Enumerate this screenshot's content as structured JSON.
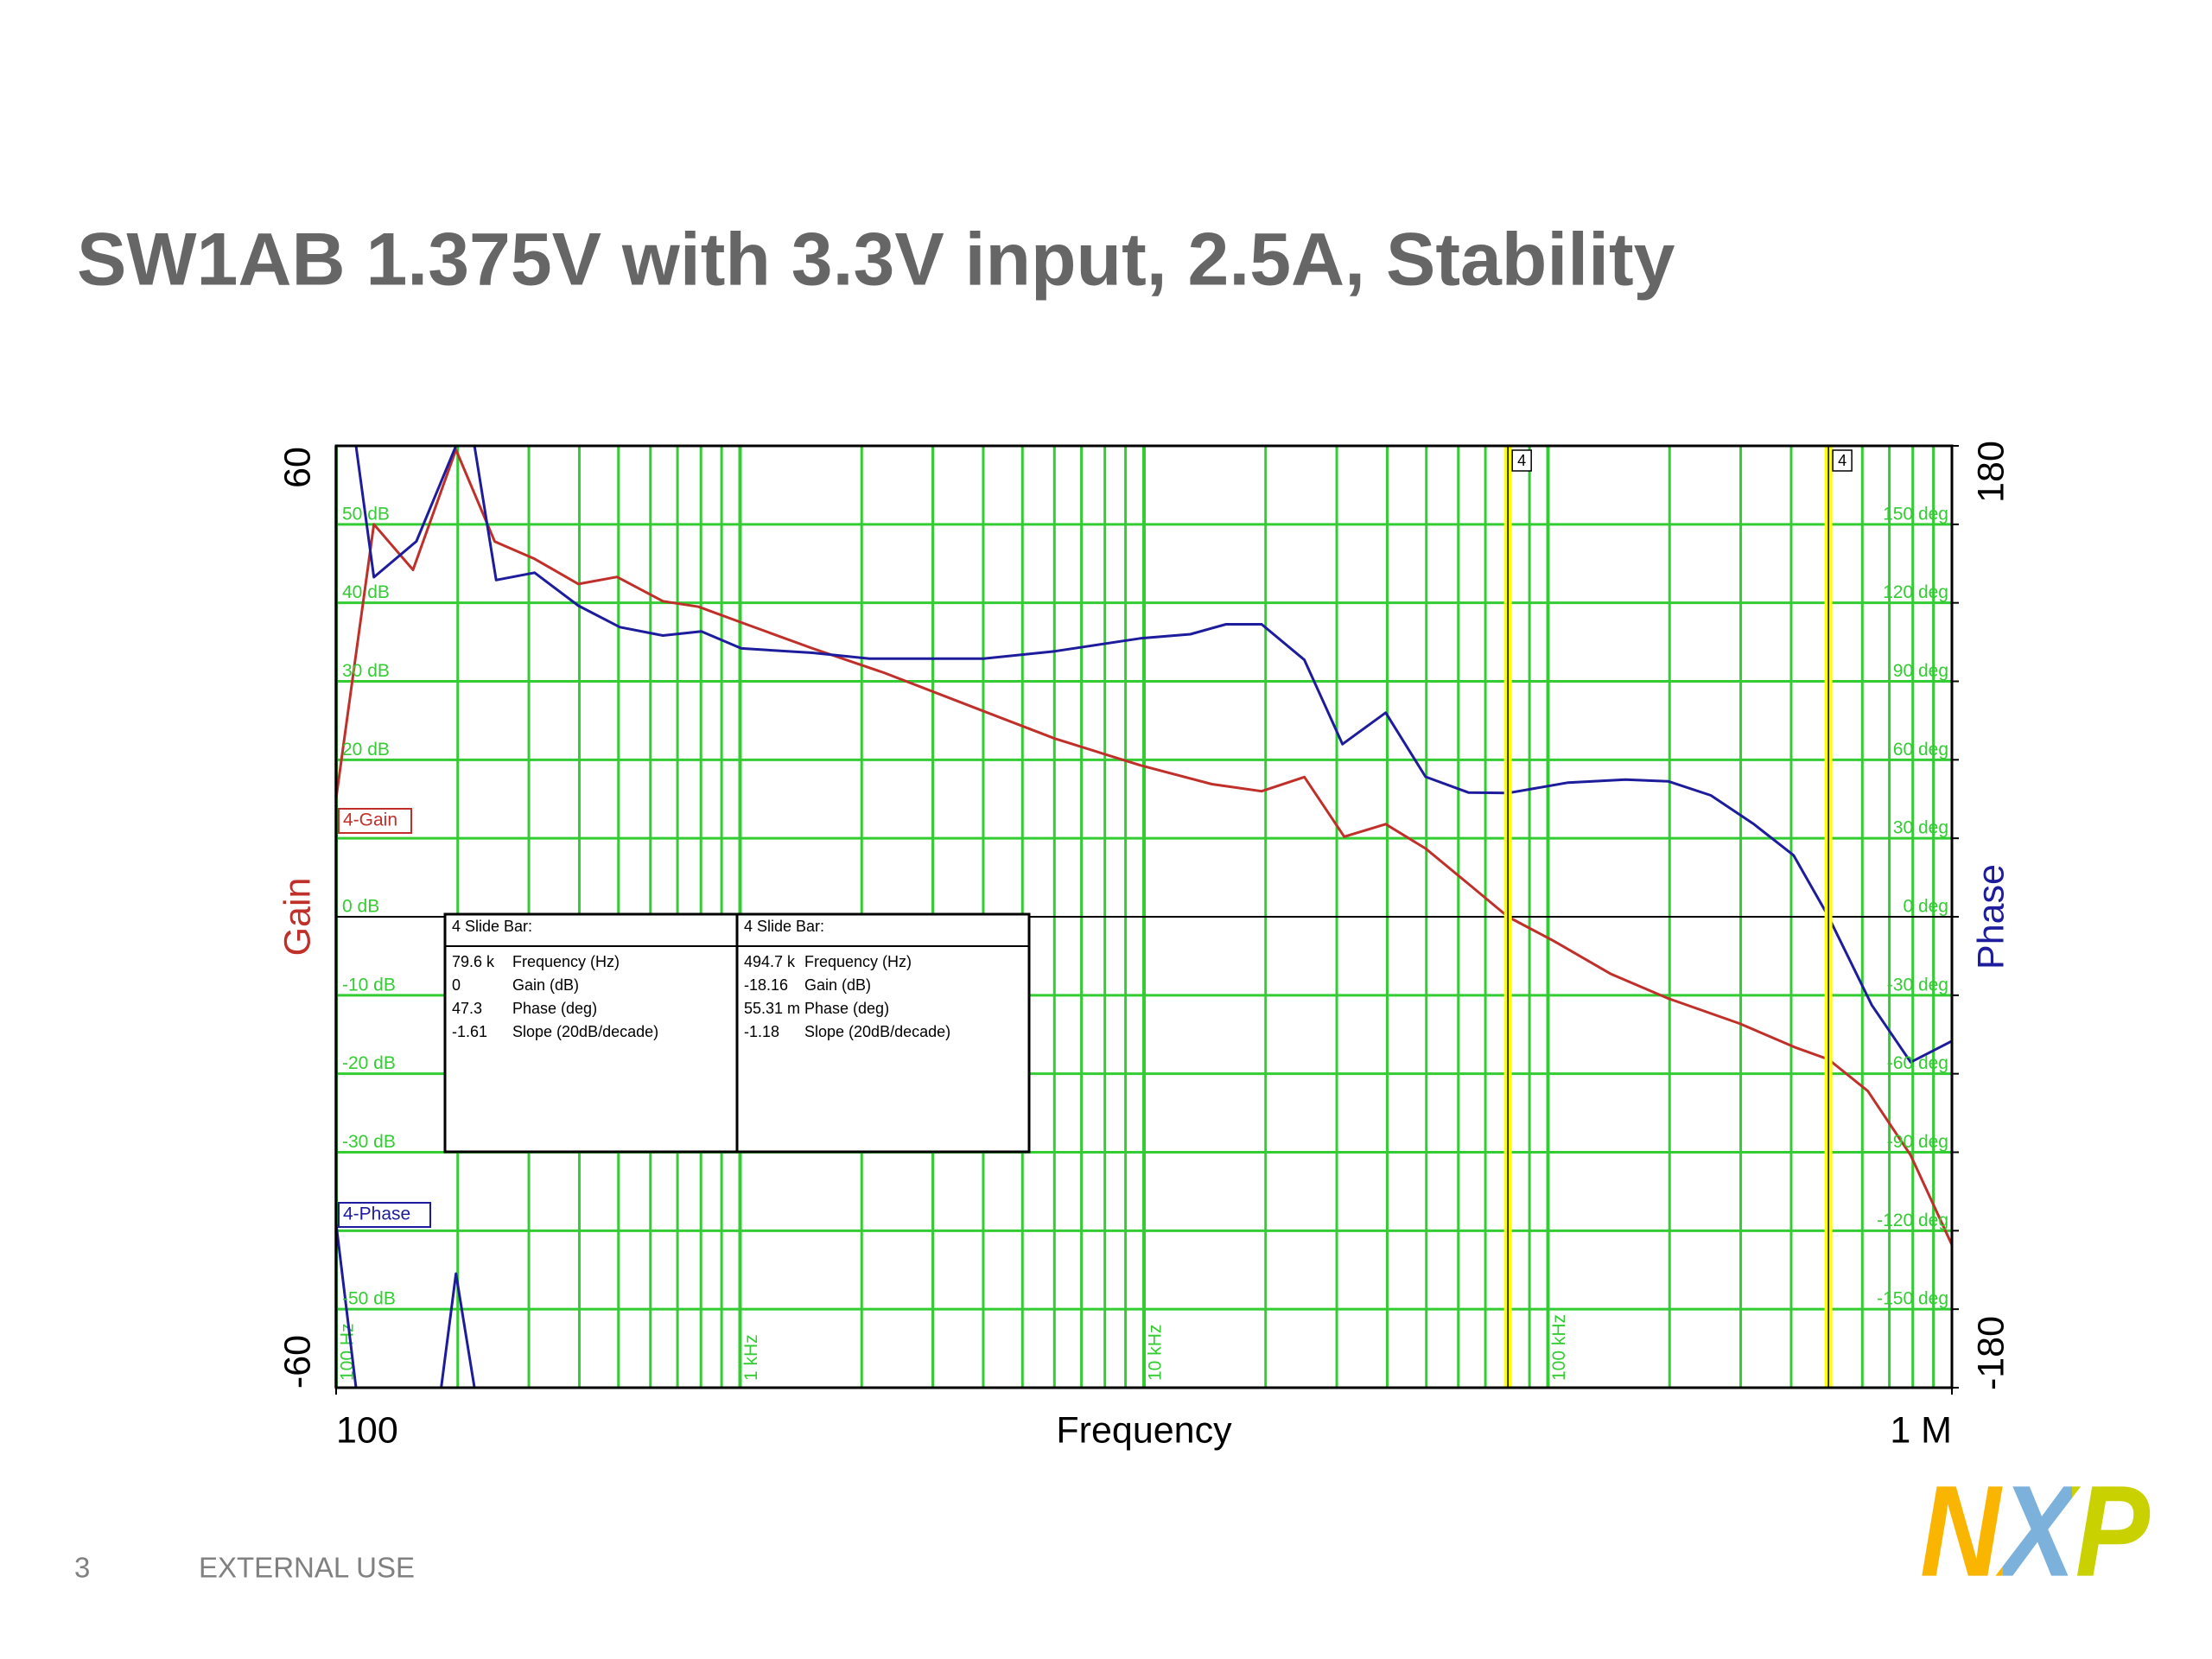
{
  "slide": {
    "title": "SW1AB 1.375V with 3.3V input, 2.5A, Stability",
    "page_number": "3",
    "classification": "EXTERNAL USE",
    "logo": "NXP"
  },
  "chart_data": {
    "type": "line",
    "x_label": "Frequency",
    "y_label": "Gain",
    "y2_label": "Phase",
    "xlim": [
      100,
      1000000
    ],
    "x_log": true,
    "minor_grid": true,
    "grid": true,
    "grid_color": "#33cc33",
    "zero_line": true,
    "xticks": [
      100,
      {
        "value": 1000000,
        "label": "1 M"
      }
    ],
    "decade_labels": [
      {
        "value": 100,
        "label": "100 Hz"
      },
      {
        "value": 1000,
        "label": "1 kHz"
      },
      {
        "value": 10000,
        "label": "10 kHz"
      },
      {
        "value": 100000,
        "label": "100 kHz"
      }
    ],
    "ylim": [
      -60,
      60
    ],
    "yticks": [
      -60,
      {
        "value": -50,
        "label": "-50 dB"
      },
      {
        "value": -40,
        "label": null
      },
      {
        "value": -30,
        "label": "-30 dB"
      },
      {
        "value": -20,
        "label": "-20 dB"
      },
      {
        "value": -10,
        "label": "-10 dB"
      },
      {
        "value": 0,
        "label": "0 dB"
      },
      {
        "value": 10,
        "label": null
      },
      {
        "value": 20,
        "label": "20 dB"
      },
      {
        "value": 30,
        "label": "30 dB"
      },
      {
        "value": 40,
        "label": "40 dB"
      },
      {
        "value": 50,
        "label": "50 dB"
      },
      60
    ],
    "y2lim": [
      -180,
      180
    ],
    "y2ticks": [
      -180,
      {
        "value": -150,
        "label": "-150 deg"
      },
      {
        "value": -120,
        "label": "-120 deg"
      },
      {
        "value": -90,
        "label": "-90 deg"
      },
      {
        "value": -60,
        "label": "-60 deg"
      },
      {
        "value": -30,
        "label": "-30 deg"
      },
      {
        "value": 0,
        "label": "0 deg"
      },
      {
        "value": 30,
        "label": "30 deg"
      },
      {
        "value": 60,
        "label": "60 deg"
      },
      {
        "value": 90,
        "label": "90 deg"
      },
      {
        "value": 120,
        "label": "120 deg"
      },
      {
        "value": 150,
        "label": "150 deg"
      },
      180
    ],
    "series": [
      {
        "name": "4-Gain",
        "color": "#c0302a",
        "x": [
          100,
          124,
          155,
          198,
          247,
          310,
          398,
          496,
          644,
          789,
          1007,
          1511,
          2270,
          3694,
          6017,
          9790,
          14720,
          19550,
          24950,
          31300,
          39650,
          49770,
          63530,
          79600,
          103500,
          143300,
          198400,
          297800,
          412000,
          494700,
          619400,
          790700,
          1000000
        ],
        "values": [
          15.1,
          50,
          44.2,
          59.5,
          47.8,
          45.6,
          42.4,
          43.3,
          40.2,
          39.5,
          37.5,
          34.2,
          31.1,
          26.9,
          22.7,
          19.3,
          16.9,
          16.0,
          17.8,
          10.2,
          11.8,
          8.7,
          4.2,
          0,
          -3.1,
          -7.3,
          -10.4,
          -13.6,
          -16.7,
          -18.16,
          -22.2,
          -30.4,
          -41.8
        ]
      },
      {
        "name": "4-Phase",
        "color": "#1c1c9c",
        "axis": "y2",
        "x": [
          100,
          112,
          null,
          112,
          124,
          158,
          198,
          null,
          182,
          198,
          220,
          null,
          220,
          249,
          310,
          398,
          504,
          644,
          802,
          1007,
          1511,
          2089,
          2894,
          4010,
          6017,
          9790,
          13020,
          15960,
          19550,
          24950,
          31000,
          39650,
          49770,
          63530,
          79600,
          112200,
          155500,
          198400,
          253000,
          322700,
          405500,
          494700,
          633500,
          790700,
          1000000
        ],
        "values": [
          -117.3,
          -180,
          null,
          180,
          129.8,
          143.5,
          180,
          null,
          -180,
          -136.4,
          -180,
          null,
          180,
          128.7,
          131.5,
          118.9,
          110.7,
          107.5,
          109.1,
          102.6,
          100.9,
          98.7,
          98.7,
          98.7,
          101.5,
          106.4,
          108,
          111.8,
          111.8,
          98.2,
          66,
          78,
          53.5,
          47.5,
          47.3,
          51.3,
          52.4,
          51.8,
          46.4,
          35.5,
          23.5,
          0.05531,
          -33.8,
          -55.6,
          -47.5
        ]
      }
    ],
    "cursors": [
      {
        "value": 79600,
        "label": "4",
        "color": "#ffff00",
        "readout_title": "4 Slide Bar:",
        "readout": [
          [
            "79.6 k",
            "Frequency (Hz)"
          ],
          [
            "0",
            "Gain (dB)"
          ],
          [
            "47.3",
            "Phase (deg)"
          ],
          [
            "-1.61",
            "Slope (20dB/decade)"
          ]
        ]
      },
      {
        "value": 494700,
        "label": "4",
        "color": "#ffff00",
        "readout_title": "4 Slide Bar:",
        "readout": [
          [
            "494.7 k",
            "Frequency (Hz)"
          ],
          [
            "-18.16",
            "Gain (dB)"
          ],
          [
            "55.31 m",
            "Phase (deg)"
          ],
          [
            "-1.18",
            "Slope (20dB/decade)"
          ]
        ]
      }
    ]
  }
}
